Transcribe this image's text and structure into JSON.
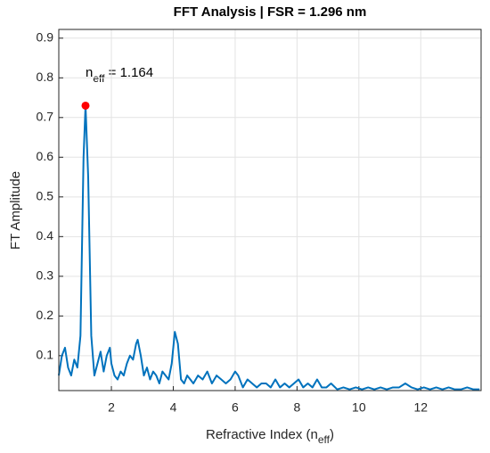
{
  "chart_data": {
    "type": "line",
    "title": "FFT Analysis | FSR = 1.296 nm",
    "x_label": [
      "Refractive Index (n",
      "eff",
      ")"
    ],
    "y_label": "FT Amplitude",
    "annotation": [
      "n",
      "eff",
      " = 1.164"
    ],
    "peak": {
      "x": 1.164,
      "y": 0.73,
      "color": "#ff0000"
    },
    "xlim": [
      0.3,
      13.95
    ],
    "ylim": [
      0.012,
      0.922
    ],
    "xticks": [
      2,
      4,
      6,
      8,
      10,
      12
    ],
    "yticks": [
      0.1,
      0.2,
      0.3,
      0.4,
      0.5,
      0.6,
      0.7,
      0.8,
      0.9
    ],
    "grid": true,
    "series": [
      {
        "color": "#0072bd",
        "x": [
          0.3,
          0.4,
          0.5,
          0.6,
          0.7,
          0.8,
          0.9,
          1.0,
          1.1,
          1.164,
          1.25,
          1.35,
          1.45,
          1.55,
          1.65,
          1.75,
          1.85,
          1.95,
          2.0,
          2.1,
          2.2,
          2.3,
          2.4,
          2.5,
          2.6,
          2.7,
          2.8,
          2.85,
          2.95,
          3.05,
          3.15,
          3.25,
          3.35,
          3.45,
          3.55,
          3.65,
          3.75,
          3.85,
          3.95,
          4.05,
          4.15,
          4.25,
          4.35,
          4.45,
          4.55,
          4.65,
          4.8,
          4.95,
          5.1,
          5.25,
          5.4,
          5.55,
          5.7,
          5.85,
          6.0,
          6.1,
          6.25,
          6.4,
          6.55,
          6.7,
          6.85,
          7.0,
          7.15,
          7.3,
          7.45,
          7.6,
          7.75,
          7.9,
          8.05,
          8.2,
          8.35,
          8.5,
          8.65,
          8.8,
          8.95,
          9.1,
          9.3,
          9.5,
          9.7,
          9.9,
          10.1,
          10.3,
          10.5,
          10.7,
          10.9,
          11.1,
          11.3,
          11.5,
          11.7,
          11.9,
          12.1,
          12.3,
          12.5,
          12.7,
          12.9,
          13.1,
          13.3,
          13.5,
          13.7,
          13.9
        ],
        "values": [
          0.05,
          0.1,
          0.12,
          0.07,
          0.05,
          0.09,
          0.07,
          0.15,
          0.6,
          0.73,
          0.55,
          0.15,
          0.05,
          0.08,
          0.11,
          0.06,
          0.1,
          0.12,
          0.08,
          0.05,
          0.04,
          0.06,
          0.05,
          0.08,
          0.1,
          0.09,
          0.13,
          0.14,
          0.1,
          0.05,
          0.07,
          0.04,
          0.06,
          0.05,
          0.03,
          0.06,
          0.05,
          0.04,
          0.08,
          0.16,
          0.13,
          0.04,
          0.03,
          0.05,
          0.04,
          0.03,
          0.05,
          0.04,
          0.06,
          0.03,
          0.05,
          0.04,
          0.03,
          0.04,
          0.06,
          0.05,
          0.02,
          0.04,
          0.03,
          0.02,
          0.03,
          0.03,
          0.02,
          0.04,
          0.02,
          0.03,
          0.02,
          0.03,
          0.04,
          0.02,
          0.03,
          0.02,
          0.04,
          0.02,
          0.02,
          0.03,
          0.015,
          0.02,
          0.015,
          0.02,
          0.015,
          0.02,
          0.015,
          0.02,
          0.015,
          0.02,
          0.02,
          0.03,
          0.02,
          0.015,
          0.02,
          0.015,
          0.02,
          0.015,
          0.02,
          0.015,
          0.015,
          0.02,
          0.015,
          0.015
        ]
      }
    ]
  }
}
